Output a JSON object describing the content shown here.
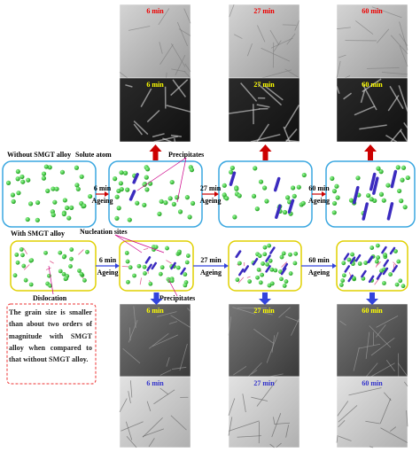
{
  "labels": {
    "without": "Without SMGT alloy",
    "solute": "Solute atom",
    "precipitates_top": "Precipitates",
    "with": "With SMGT alloy",
    "nucleation": "Nucleation sites",
    "dislocation": "Dislocation",
    "precipitates_bottom": "Precipitates"
  },
  "top_steps": [
    {
      "time": "6 min",
      "action": "Ageing"
    },
    {
      "time": "27 min",
      "action": "Ageing"
    },
    {
      "time": "60 min",
      "action": "Ageing"
    }
  ],
  "bottom_steps": [
    {
      "time": "6 min",
      "action": "Ageing"
    },
    {
      "time": "27 min",
      "action": "Ageing"
    },
    {
      "time": "60 min",
      "action": "Ageing"
    }
  ],
  "micrographs": [
    {
      "labels": [
        "6 min",
        "27 min",
        "60 min"
      ]
    },
    {
      "labels": [
        "6 min",
        "27 min",
        "60 min"
      ]
    },
    {
      "labels": [
        "6 min",
        "27 min",
        "60 min"
      ]
    },
    {
      "labels": [
        "6 min",
        "27 min",
        "60 min"
      ]
    }
  ],
  "note": "The grain size is smaller than about two orders of magnitude with SMGT alloy when compared to that without SMGT alloy."
}
